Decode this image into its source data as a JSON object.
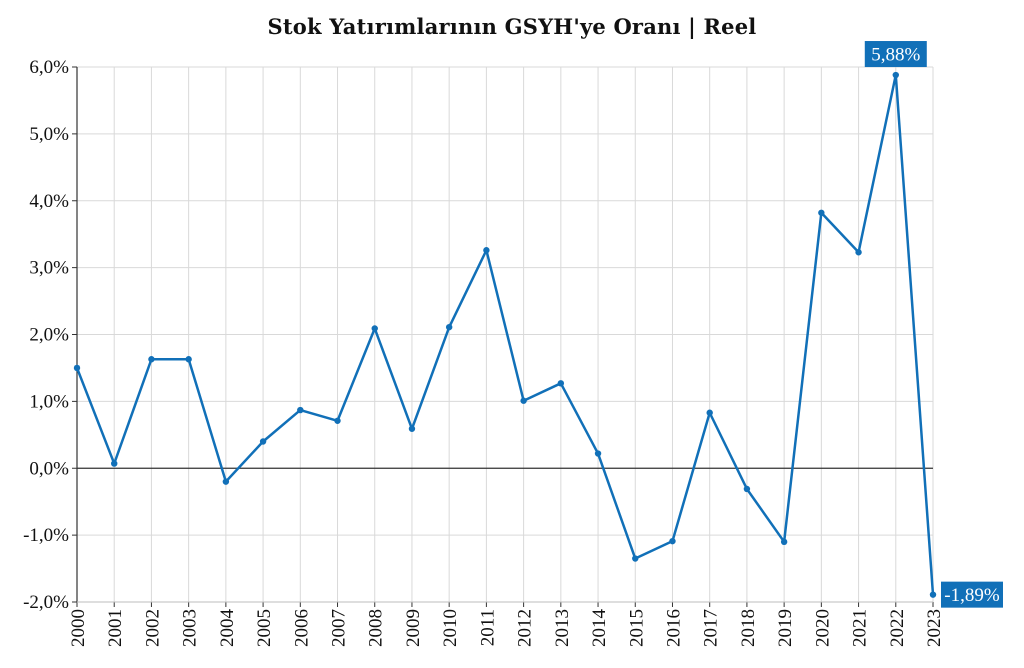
{
  "chart_data": {
    "type": "line",
    "title": "Stok Yatırımlarının GSYH'ye Oranı | Reel",
    "xlabel": "",
    "ylabel": "",
    "ylim": [
      -2.0,
      6.0
    ],
    "y_ticks": [
      {
        "value": 6,
        "label": "6,0%"
      },
      {
        "value": 5,
        "label": "5,0%"
      },
      {
        "value": 4,
        "label": "4,0%"
      },
      {
        "value": 3,
        "label": "3,0%"
      },
      {
        "value": 2,
        "label": "2,0%"
      },
      {
        "value": 1,
        "label": "1,0%"
      },
      {
        "value": 0,
        "label": "0,0%"
      },
      {
        "value": -1,
        "label": "-1,0%"
      },
      {
        "value": -2,
        "label": "-2,0%"
      }
    ],
    "categories": [
      "2000",
      "2001",
      "2002",
      "2003",
      "2004",
      "2005",
      "2006",
      "2007",
      "2008",
      "2009",
      "2010",
      "2011",
      "2012",
      "2013",
      "2014",
      "2015",
      "2016",
      "2017",
      "2018",
      "2019",
      "2020",
      "2021",
      "2022",
      "2023"
    ],
    "series": [
      {
        "name": "Stok Yatırımlarının GSYH'ye Oranı",
        "color": "#1170b8",
        "values": [
          1.5,
          0.07,
          1.63,
          1.63,
          -0.2,
          0.4,
          0.87,
          0.71,
          2.09,
          0.59,
          2.11,
          3.26,
          1.01,
          1.27,
          0.22,
          -1.35,
          -1.09,
          0.83,
          -0.31,
          -1.1,
          3.82,
          3.23,
          5.88,
          -1.89
        ]
      }
    ],
    "annotations": [
      {
        "category": "2022",
        "text": "5,88%",
        "color": "#1170b8"
      },
      {
        "category": "2023",
        "text": "-1,89%",
        "color": "#1170b8"
      }
    ],
    "grid": true
  }
}
